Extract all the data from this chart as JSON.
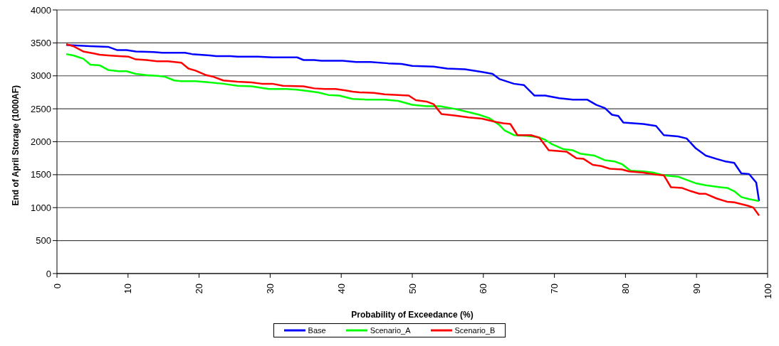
{
  "chart_data": {
    "type": "line",
    "xlabel": "Probability of Exceedance (%)",
    "ylabel": "End of April Storage (1000AF)",
    "xlim": [
      0,
      100
    ],
    "xticks": [
      0,
      10,
      20,
      30,
      40,
      50,
      60,
      70,
      80,
      90,
      100
    ],
    "ylim": [
      0,
      4000
    ],
    "yticks": [
      0,
      500,
      1000,
      1500,
      2000,
      2500,
      3000,
      3500,
      4000
    ],
    "grid": "y",
    "legend": "bottom",
    "marker": "none",
    "line_style": "solid",
    "series": [
      {
        "name": "Base",
        "color": "#0000ff",
        "x": [
          1.3,
          4.7,
          7.2,
          8.5,
          9.8,
          11.1,
          13.6,
          14.8,
          18.0,
          19.0,
          21.5,
          22.4,
          24.4,
          25.4,
          28.3,
          30.3,
          33.8,
          34.7,
          36.2,
          37.2,
          40.2,
          42.1,
          44.1,
          46.6,
          48.5,
          50.0,
          53.0,
          54.9,
          57.4,
          59.8,
          61.3,
          62.3,
          64.3,
          65.7,
          67.2,
          68.7,
          70.7,
          72.6,
          74.6,
          75.9,
          77.1,
          78.1,
          79.0,
          79.7,
          82.5,
          84.3,
          85.4,
          87.4,
          88.6,
          89.9,
          91.3,
          92.8,
          94.1,
          95.3,
          96.3,
          97.4,
          98.4,
          98.8
        ],
        "values": [
          3470,
          3450,
          3440,
          3390,
          3390,
          3370,
          3360,
          3350,
          3350,
          3330,
          3310,
          3300,
          3300,
          3290,
          3290,
          3280,
          3280,
          3240,
          3240,
          3230,
          3230,
          3210,
          3210,
          3190,
          3180,
          3150,
          3140,
          3110,
          3100,
          3060,
          3030,
          2950,
          2880,
          2860,
          2700,
          2700,
          2660,
          2640,
          2640,
          2560,
          2510,
          2410,
          2390,
          2290,
          2270,
          2240,
          2100,
          2080,
          2050,
          1900,
          1790,
          1740,
          1700,
          1680,
          1520,
          1510,
          1380,
          1100
        ]
      },
      {
        "name": "Scenario_A",
        "color": "#00ff00",
        "x": [
          1.3,
          2.3,
          3.7,
          4.7,
          6.0,
          7.2,
          8.7,
          9.8,
          11.1,
          12.6,
          14.1,
          15.1,
          16.5,
          17.5,
          19.5,
          21.5,
          23.4,
          25.4,
          27.4,
          29.8,
          32.3,
          33.8,
          35.2,
          36.7,
          38.2,
          39.7,
          41.6,
          43.6,
          46.1,
          48.0,
          50.0,
          52.0,
          53.9,
          55.9,
          57.9,
          59.4,
          60.8,
          62.3,
          63.0,
          64.3,
          66.2,
          67.7,
          68.7,
          69.7,
          71.2,
          72.6,
          73.6,
          75.6,
          77.1,
          78.5,
          79.5,
          80.7,
          82.5,
          84.0,
          85.4,
          87.4,
          88.4,
          89.9,
          91.3,
          93.3,
          94.3,
          95.3,
          96.3,
          97.4,
          98.8
        ],
        "values": [
          3330,
          3310,
          3260,
          3170,
          3160,
          3090,
          3070,
          3070,
          3030,
          3010,
          3000,
          2990,
          2930,
          2920,
          2920,
          2900,
          2880,
          2850,
          2840,
          2800,
          2800,
          2790,
          2770,
          2750,
          2710,
          2700,
          2650,
          2640,
          2640,
          2620,
          2560,
          2540,
          2540,
          2500,
          2450,
          2410,
          2360,
          2250,
          2170,
          2100,
          2090,
          2070,
          2030,
          1960,
          1890,
          1870,
          1820,
          1790,
          1720,
          1700,
          1660,
          1560,
          1550,
          1530,
          1490,
          1470,
          1430,
          1370,
          1340,
          1310,
          1300,
          1250,
          1160,
          1130,
          1100
        ]
      },
      {
        "name": "Scenario_B",
        "color": "#ff0000",
        "x": [
          1.3,
          2.3,
          3.7,
          5.2,
          6.0,
          7.2,
          8.7,
          10.1,
          11.1,
          12.6,
          14.1,
          15.6,
          17.5,
          18.5,
          19.5,
          21.0,
          21.9,
          23.4,
          25.4,
          27.4,
          28.8,
          30.3,
          31.8,
          34.7,
          36.2,
          37.7,
          39.2,
          40.6,
          41.6,
          42.6,
          44.6,
          46.1,
          48.0,
          49.5,
          50.5,
          52.0,
          53.0,
          54.1,
          55.9,
          57.9,
          59.8,
          61.8,
          62.8,
          63.8,
          64.8,
          66.7,
          67.9,
          69.2,
          71.7,
          73.1,
          74.1,
          75.4,
          76.6,
          77.8,
          79.5,
          80.5,
          82.5,
          84.3,
          85.4,
          86.4,
          87.9,
          89.2,
          90.4,
          91.3,
          92.8,
          94.3,
          95.3,
          97.2,
          98.0,
          98.8
        ],
        "values": [
          3480,
          3450,
          3370,
          3340,
          3320,
          3310,
          3300,
          3290,
          3250,
          3240,
          3220,
          3220,
          3200,
          3110,
          3080,
          3010,
          2990,
          2930,
          2910,
          2900,
          2880,
          2880,
          2850,
          2840,
          2810,
          2800,
          2800,
          2780,
          2760,
          2750,
          2740,
          2720,
          2710,
          2700,
          2630,
          2610,
          2570,
          2420,
          2400,
          2370,
          2350,
          2300,
          2280,
          2270,
          2100,
          2100,
          2060,
          1870,
          1850,
          1750,
          1740,
          1650,
          1630,
          1590,
          1580,
          1550,
          1530,
          1500,
          1490,
          1310,
          1300,
          1250,
          1210,
          1210,
          1140,
          1090,
          1080,
          1030,
          1000,
          880
        ]
      }
    ]
  }
}
